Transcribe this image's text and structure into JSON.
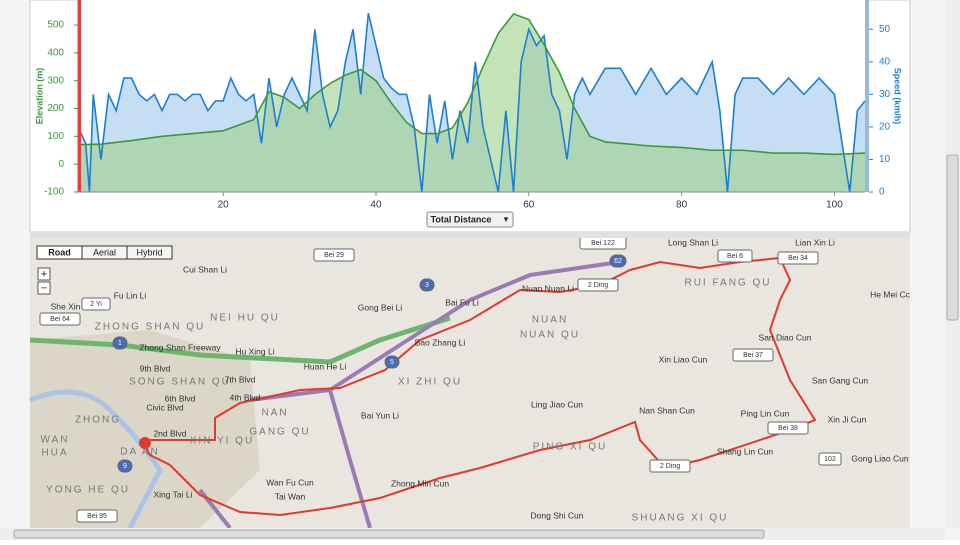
{
  "chart_data": {
    "type": "line",
    "y_label": "Elevation (m)",
    "y2_label": "Speed (km/h)",
    "x_selector": "Total Distance",
    "xlim": [
      1,
      104
    ],
    "xticks": [
      20,
      40,
      60,
      80,
      100
    ],
    "ylim": [
      -100,
      590
    ],
    "yticks": [
      -100,
      0,
      100,
      200,
      300,
      400,
      500
    ],
    "y2lim": [
      0,
      59
    ],
    "y2ticks": [
      0,
      10,
      20,
      30,
      40,
      50
    ],
    "series": [
      {
        "name": "Speed",
        "axis": "y2",
        "color": "#1e7fd0",
        "fill": "#bcd8f2",
        "x": [
          1,
          2,
          2.5,
          3,
          4,
          5,
          6,
          7,
          8,
          9,
          10,
          11,
          12,
          13,
          14,
          15,
          16,
          17,
          18,
          19,
          20,
          21,
          22,
          23,
          24,
          25,
          26,
          27,
          28,
          29,
          30,
          31,
          32,
          33,
          34,
          35,
          36,
          37,
          38,
          39,
          40,
          41,
          42,
          43,
          44,
          45,
          46,
          47,
          48,
          49,
          50,
          51,
          52,
          53,
          54,
          55,
          56,
          57,
          58,
          59,
          60,
          61,
          62,
          63,
          64,
          65,
          66,
          67,
          68,
          70,
          72,
          74,
          76,
          78,
          80,
          82,
          84,
          85,
          86,
          87,
          88,
          90,
          92,
          94,
          96,
          98,
          100,
          102,
          103,
          104
        ],
        "values": [
          20,
          15,
          0,
          30,
          10,
          30,
          25,
          35,
          35,
          30,
          28,
          30,
          25,
          30,
          30,
          28,
          30,
          30,
          25,
          28,
          28,
          35,
          30,
          28,
          30,
          15,
          35,
          20,
          30,
          35,
          30,
          25,
          50,
          30,
          20,
          25,
          40,
          50,
          30,
          55,
          45,
          35,
          32,
          30,
          30,
          20,
          0,
          30,
          15,
          28,
          10,
          25,
          15,
          40,
          20,
          10,
          0,
          25,
          0,
          40,
          50,
          45,
          48,
          30,
          25,
          10,
          30,
          35,
          30,
          38,
          38,
          30,
          38,
          30,
          35,
          30,
          40,
          25,
          0,
          30,
          35,
          35,
          30,
          35,
          30,
          35,
          30,
          0,
          25,
          28
        ]
      },
      {
        "name": "Elevation",
        "axis": "y",
        "color": "#3a9a3a",
        "fill": "#9fd08a",
        "x": [
          1,
          4,
          8,
          12,
          16,
          20,
          24,
          26,
          28,
          30,
          32,
          34,
          36,
          38,
          40,
          42,
          44,
          46,
          48,
          50,
          52,
          54,
          56,
          58,
          60,
          62,
          64,
          66,
          68,
          70,
          72,
          76,
          80,
          84,
          88,
          92,
          96,
          100,
          104
        ],
        "values": [
          70,
          72,
          85,
          100,
          110,
          120,
          160,
          260,
          240,
          200,
          250,
          290,
          320,
          340,
          300,
          220,
          150,
          110,
          110,
          130,
          220,
          350,
          470,
          540,
          520,
          430,
          330,
          200,
          100,
          80,
          75,
          65,
          60,
          50,
          50,
          40,
          40,
          35,
          40
        ]
      }
    ]
  },
  "map": {
    "tabs": [
      "Road",
      "Aerial",
      "Hybrid"
    ],
    "zoom": [
      "+",
      "−"
    ],
    "labels": [
      "Cui Shan Li",
      "Fu Lin Li",
      "She Xin Li",
      "NEI HU QU",
      "ZHONG SHAN QU",
      "Zhong Shan Freeway",
      "Hu Xing Li",
      "Gong Bei Li",
      "Bai Fu Li",
      "Bao Zhang Li",
      "Huan He Li",
      "XI ZHI QU",
      "NUAN",
      "NUAN QU",
      "Nuan Nuan Li",
      "Long Shan Li",
      "Lian Xin Li",
      "RUI FANG QU",
      "He Mei Cc",
      "San Diao Cun",
      "Xin Liao Cun",
      "San Gang Cun",
      "Ling Jiao Cun",
      "Nan Shan Cun",
      "Ping Lin Cun",
      "Xin Ji Cun",
      "Bai Yun Li",
      "NAN",
      "GANG QU",
      "XIN YI QU",
      "PING XI QU",
      "Shang Lin Cun",
      "Gong Liao Cun",
      "Zhong Min Cun",
      "Wan Fu Cun",
      "Tai Wan",
      "Xing Tai Li",
      "Dong Shi Cun",
      "SHUANG XI QU",
      "SONG SHAN QU",
      "9th Blvd",
      "7th Blvd",
      "6th Blvd",
      "Civic Blvd",
      "4th Blvd",
      "2nd Blvd",
      "YONG HE QU",
      "ZHONG",
      "WAN",
      "HUA",
      "DA AN"
    ],
    "shields": [
      "1",
      "3",
      "5",
      "9",
      "2 Yi",
      "2 Ding",
      "2 Ding",
      "Bei 29",
      "Bei 37",
      "Bei 34",
      "Bei 38",
      "102",
      "Bei 122",
      "Bei 64",
      "Bei 95",
      "Bei 6",
      "62"
    ]
  }
}
